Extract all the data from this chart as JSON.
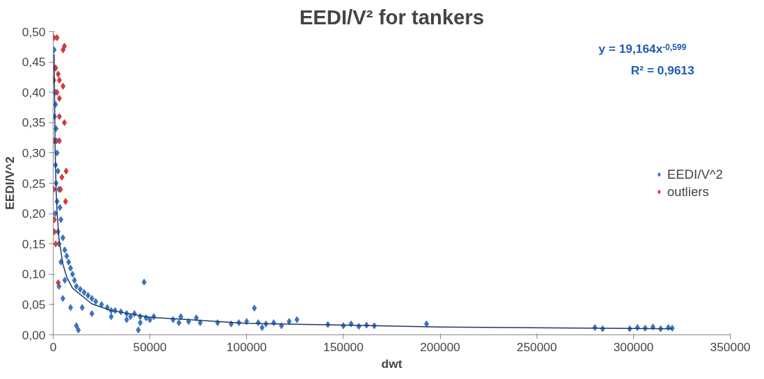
{
  "chart_data": {
    "type": "scatter",
    "title": "EEDI/V² for tankers",
    "xlabel": "dwt",
    "ylabel": "EEDI/V^2",
    "xlim": [
      0,
      350000
    ],
    "xticks": [
      0,
      50000,
      100000,
      150000,
      200000,
      250000,
      300000,
      350000
    ],
    "ylim": [
      0,
      0.5
    ],
    "yticks": [
      {
        "value": 0,
        "label": "0,00"
      },
      {
        "value": 0.05,
        "label": "0,05"
      },
      {
        "value": 0.1,
        "label": "0,10"
      },
      {
        "value": 0.15,
        "label": "0,15"
      },
      {
        "value": 0.2,
        "label": "0,20"
      },
      {
        "value": 0.25,
        "label": "0,25"
      },
      {
        "value": 0.3,
        "label": "0,30"
      },
      {
        "value": 0.35,
        "label": "0,35"
      },
      {
        "value": 0.4,
        "label": "0,40"
      },
      {
        "value": 0.45,
        "label": "0,45"
      },
      {
        "value": 0.5,
        "label": "0,50"
      }
    ],
    "grid": false,
    "legend": "right",
    "marker": "diamond",
    "annotations": [
      "y = 19,164x$^{-0,599}$",
      "R² = 0,9613"
    ],
    "series": [
      {
        "name": "EEDI/V^2",
        "color": "#3b73c0",
        "x": [
          500,
          800,
          1000,
          1200,
          700,
          1500,
          1800,
          2000,
          1200,
          2500,
          1500,
          3000,
          2000,
          3500,
          1000,
          4000,
          2500,
          5000,
          3000,
          6000,
          7000,
          4000,
          8000,
          9000,
          10000,
          6000,
          11000,
          12000,
          14000,
          16000,
          3000,
          5000,
          9000,
          12000,
          13000,
          18000,
          20000,
          22000,
          15000,
          25000,
          28000,
          30000,
          20000,
          32000,
          35000,
          38000,
          40000,
          42000,
          45000,
          48000,
          47000,
          50000,
          52000,
          38000,
          45000,
          44000,
          30000,
          62000,
          66000,
          70000,
          74000,
          76000,
          65000,
          85000,
          92000,
          96000,
          100000,
          104000,
          106000,
          110000,
          114000,
          118000,
          122000,
          126000,
          108000,
          142000,
          150000,
          154000,
          158000,
          162000,
          166000,
          193000,
          280000,
          284000,
          298000,
          302000,
          306000,
          310000,
          314000,
          318000,
          320000
        ],
        "values": [
          0.47,
          0.44,
          0.4,
          0.38,
          0.36,
          0.34,
          0.32,
          0.3,
          0.28,
          0.27,
          0.25,
          0.24,
          0.22,
          0.21,
          0.2,
          0.19,
          0.17,
          0.16,
          0.15,
          0.14,
          0.13,
          0.12,
          0.12,
          0.11,
          0.1,
          0.09,
          0.09,
          0.08,
          0.075,
          0.07,
          0.08,
          0.06,
          0.045,
          0.015,
          0.008,
          0.065,
          0.06,
          0.055,
          0.045,
          0.05,
          0.045,
          0.04,
          0.035,
          0.04,
          0.038,
          0.035,
          0.03,
          0.035,
          0.03,
          0.028,
          0.087,
          0.025,
          0.03,
          0.025,
          0.02,
          0.008,
          0.03,
          0.025,
          0.03,
          0.022,
          0.028,
          0.02,
          0.02,
          0.02,
          0.018,
          0.02,
          0.022,
          0.044,
          0.02,
          0.018,
          0.02,
          0.015,
          0.022,
          0.025,
          0.012,
          0.017,
          0.015,
          0.018,
          0.014,
          0.016,
          0.015,
          0.018,
          0.012,
          0.01,
          0.01,
          0.012,
          0.011,
          0.013,
          0.01,
          0.012,
          0.011
        ]
      },
      {
        "name": "outliers",
        "color": "#d13a3a",
        "x": [
          400,
          2000,
          5800,
          5100,
          1300,
          2600,
          300,
          3200,
          5100,
          2000,
          3200,
          3200,
          5800,
          600,
          3200,
          6700,
          4500,
          300,
          3800,
          6400,
          600,
          600,
          1300,
          2600
        ],
        "values": [
          0.49,
          0.49,
          0.476,
          0.47,
          0.44,
          0.43,
          0.42,
          0.42,
          0.41,
          0.4,
          0.39,
          0.36,
          0.35,
          0.32,
          0.32,
          0.27,
          0.26,
          0.24,
          0.24,
          0.22,
          0.19,
          0.17,
          0.15,
          0.086
        ]
      },
      {
        "type": "line",
        "marker": "none",
        "color": "#1f3864",
        "x": [
          500,
          1000,
          1500,
          2000,
          3000,
          5000,
          7000,
          10000,
          20000,
          30000,
          50000,
          100000,
          200000,
          320000
        ],
        "values": [
          0.463,
          0.306,
          0.24,
          0.202,
          0.158,
          0.117,
          0.095,
          0.077,
          0.051,
          0.04,
          0.029,
          0.019,
          0.013,
          0.01
        ]
      }
    ]
  }
}
